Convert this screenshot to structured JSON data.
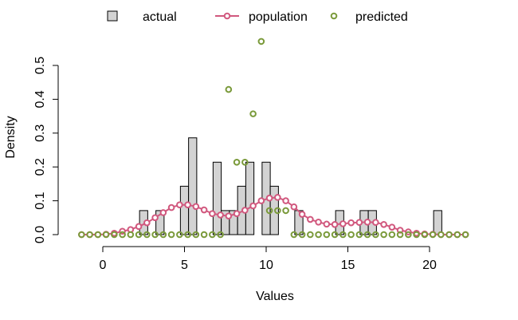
{
  "chart_data": {
    "type": "bar",
    "xlabel": "Values",
    "ylabel": "Density",
    "xlim": [
      -1.5,
      22.5
    ],
    "ylim": [
      0,
      0.6
    ],
    "x_ticks": [
      0,
      5,
      10,
      15,
      20
    ],
    "y_ticks": [
      0.0,
      0.1,
      0.2,
      0.3,
      0.4,
      0.5
    ],
    "x_tick_labels": [
      "0",
      "5",
      "10",
      "15",
      "20"
    ],
    "y_tick_labels": [
      "0.0",
      "0.1",
      "0.2",
      "0.3",
      "0.4",
      "0.5"
    ],
    "legend": {
      "placement": "top",
      "entries": [
        {
          "label": "actual",
          "symbol": "filled-square"
        },
        {
          "label": "population",
          "symbol": "line-circle"
        },
        {
          "label": "predicted",
          "symbol": "circle"
        }
      ]
    },
    "colors": {
      "bar_fill": "#d3d3d3",
      "population": "#d1587e",
      "predicted": "#7a9a3a"
    },
    "bin_width": 0.5,
    "series": [
      {
        "name": "actual",
        "kind": "histogram",
        "x": [
          2.5,
          3.5,
          5.0,
          5.5,
          7.0,
          7.5,
          8.0,
          8.5,
          9.0,
          10.0,
          10.5,
          12.0,
          14.5,
          16.0,
          16.5,
          20.5
        ],
        "y": [
          0.071,
          0.071,
          0.143,
          0.286,
          0.214,
          0.071,
          0.071,
          0.143,
          0.214,
          0.214,
          0.143,
          0.071,
          0.071,
          0.071,
          0.071,
          0.071
        ]
      },
      {
        "name": "population",
        "kind": "line",
        "x": [
          -1.3,
          -0.8,
          -0.3,
          0.2,
          0.7,
          1.2,
          1.7,
          2.2,
          2.7,
          3.2,
          3.7,
          4.2,
          4.7,
          5.2,
          5.7,
          6.2,
          6.7,
          7.2,
          7.7,
          8.2,
          8.7,
          9.2,
          9.7,
          10.2,
          10.7,
          11.2,
          11.7,
          12.2,
          12.7,
          13.2,
          13.7,
          14.2,
          14.7,
          15.2,
          15.7,
          16.2,
          16.7,
          17.2,
          17.7,
          18.2,
          18.7,
          19.2,
          19.7,
          20.2,
          20.7,
          21.2,
          21.7,
          22.2
        ],
        "y": [
          0.0,
          0.0,
          0.0,
          0.001,
          0.004,
          0.01,
          0.015,
          0.024,
          0.035,
          0.05,
          0.065,
          0.08,
          0.088,
          0.088,
          0.083,
          0.073,
          0.062,
          0.058,
          0.055,
          0.062,
          0.072,
          0.085,
          0.1,
          0.108,
          0.11,
          0.1,
          0.082,
          0.06,
          0.045,
          0.037,
          0.031,
          0.03,
          0.032,
          0.035,
          0.036,
          0.037,
          0.036,
          0.03,
          0.022,
          0.013,
          0.008,
          0.004,
          0.002,
          0.001,
          0.0,
          0.0,
          0.0,
          0.0
        ]
      },
      {
        "name": "predicted",
        "kind": "scatter",
        "x": [
          -1.3,
          -0.8,
          -0.3,
          0.2,
          0.7,
          1.2,
          1.7,
          2.2,
          2.7,
          3.2,
          3.7,
          4.2,
          4.7,
          5.2,
          5.7,
          6.2,
          6.7,
          7.2,
          7.7,
          8.2,
          8.7,
          9.2,
          9.7,
          10.2,
          10.7,
          11.2,
          11.7,
          12.2,
          12.7,
          13.2,
          13.7,
          14.2,
          14.7,
          15.2,
          15.7,
          16.2,
          16.7,
          17.2,
          17.7,
          18.2,
          18.7,
          19.2,
          19.7,
          20.2,
          20.7,
          21.2,
          21.7,
          22.2
        ],
        "y": [
          0,
          0,
          0,
          0,
          0,
          0,
          0,
          0,
          0,
          0,
          0,
          0,
          0,
          0,
          0,
          0,
          0,
          0,
          0.429,
          0.214,
          0.214,
          0.357,
          0.571,
          0.071,
          0.071,
          0.071,
          0,
          0,
          0,
          0,
          0,
          0,
          0,
          0,
          0,
          0,
          0,
          0,
          0,
          0,
          0,
          0,
          0,
          0,
          0,
          0,
          0,
          0
        ]
      }
    ]
  }
}
